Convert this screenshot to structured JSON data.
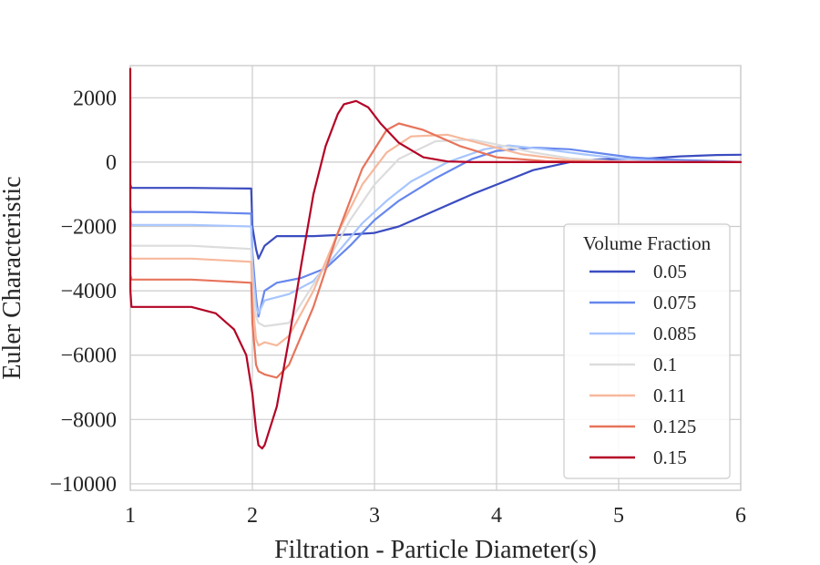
{
  "chart_data": {
    "type": "line",
    "title": "",
    "xlabel": "Filtration - Particle Diameter(s)",
    "ylabel": "Euler Characteristic",
    "xlim": [
      1,
      6
    ],
    "ylim": [
      -10200,
      3000
    ],
    "xticks": [
      1,
      2,
      3,
      4,
      5,
      6
    ],
    "xtick_labels": [
      "1",
      "2",
      "3",
      "4",
      "5",
      "6"
    ],
    "yticks": [
      2000,
      0,
      -2000,
      -4000,
      -6000,
      -8000,
      -10000
    ],
    "ytick_labels": [
      "2000",
      "0",
      "−2000",
      "−4000",
      "−6000",
      "−8000",
      "−10000"
    ],
    "grid": true,
    "legend_title": "Volume Fraction",
    "legend_position": "lower-right",
    "series": [
      {
        "name": "0.05",
        "color": "#3b4cc0",
        "x": [
          1.0,
          1.01,
          1.5,
          1.99,
          2.0,
          2.03,
          2.05,
          2.1,
          2.2,
          2.5,
          2.8,
          3.0,
          3.2,
          3.5,
          3.8,
          4.0,
          4.3,
          4.6,
          4.8,
          5.0,
          5.2,
          5.5,
          5.8,
          6.0
        ],
        "y": [
          -700,
          -800,
          -800,
          -820,
          -2000,
          -2700,
          -3000,
          -2600,
          -2300,
          -2300,
          -2250,
          -2200,
          -2000,
          -1500,
          -1000,
          -700,
          -250,
          0,
          80,
          100,
          100,
          180,
          220,
          230
        ]
      },
      {
        "name": "0.075",
        "color": "#6687ed",
        "x": [
          1.0,
          1.01,
          1.5,
          1.99,
          2.0,
          2.03,
          2.05,
          2.1,
          2.2,
          2.4,
          2.6,
          2.8,
          3.0,
          3.2,
          3.5,
          3.8,
          4.0,
          4.3,
          4.6,
          4.9,
          5.1,
          5.4,
          5.8,
          6.0
        ],
        "y": [
          -1400,
          -1550,
          -1550,
          -1600,
          -2800,
          -4200,
          -4800,
          -4000,
          -3750,
          -3600,
          -3300,
          -2600,
          -1800,
          -1200,
          -500,
          100,
          350,
          450,
          400,
          250,
          150,
          80,
          30,
          10
        ]
      },
      {
        "name": "0.085",
        "color": "#a7c5fe",
        "x": [
          1.0,
          1.01,
          1.5,
          1.99,
          2.0,
          2.03,
          2.05,
          2.1,
          2.3,
          2.5,
          2.7,
          2.9,
          3.1,
          3.3,
          3.6,
          3.9,
          4.1,
          4.4,
          4.7,
          5.0,
          5.3,
          5.6,
          6.0
        ],
        "y": [
          -1800,
          -1950,
          -1950,
          -2000,
          -3200,
          -4500,
          -4700,
          -4300,
          -4100,
          -3700,
          -2800,
          -1900,
          -1200,
          -600,
          0,
          400,
          520,
          400,
          250,
          120,
          40,
          10,
          0
        ]
      },
      {
        "name": "0.1",
        "color": "#dddcdc",
        "x": [
          1.0,
          1.01,
          1.5,
          1.99,
          2.0,
          2.03,
          2.05,
          2.1,
          2.3,
          2.4,
          2.6,
          2.8,
          3.0,
          3.2,
          3.5,
          3.8,
          4.0,
          4.3,
          4.6,
          5.0,
          5.4,
          6.0
        ],
        "y": [
          -2500,
          -2600,
          -2600,
          -2700,
          -3800,
          -4800,
          -5000,
          -5100,
          -5000,
          -4400,
          -3200,
          -1800,
          -700,
          100,
          650,
          700,
          550,
          300,
          120,
          20,
          0,
          0
        ]
      },
      {
        "name": "0.11",
        "color": "#f7b89c",
        "x": [
          1.0,
          1.01,
          1.5,
          1.99,
          2.0,
          2.03,
          2.05,
          2.1,
          2.2,
          2.3,
          2.5,
          2.7,
          2.9,
          3.1,
          3.3,
          3.6,
          3.9,
          4.2,
          4.6,
          5.0,
          5.5,
          6.0
        ],
        "y": [
          -2900,
          -3000,
          -3000,
          -3100,
          -4300,
          -5500,
          -5700,
          -5600,
          -5700,
          -5400,
          -4000,
          -2200,
          -700,
          300,
          800,
          850,
          550,
          250,
          60,
          10,
          0,
          0
        ]
      },
      {
        "name": "0.125",
        "color": "#e7745b",
        "x": [
          1.0,
          1.01,
          1.5,
          1.99,
          2.0,
          2.03,
          2.05,
          2.1,
          2.2,
          2.3,
          2.5,
          2.7,
          2.9,
          3.1,
          3.2,
          3.4,
          3.7,
          4.0,
          4.4,
          4.8,
          5.3,
          6.0
        ],
        "y": [
          -3500,
          -3650,
          -3650,
          -3750,
          -5000,
          -6300,
          -6500,
          -6600,
          -6700,
          -6300,
          -4500,
          -2200,
          -200,
          1000,
          1200,
          1000,
          500,
          150,
          30,
          5,
          0,
          0
        ]
      },
      {
        "name": "0.15",
        "color": "#b40426",
        "x": [
          1.0,
          1.001,
          1.01,
          1.5,
          1.7,
          1.85,
          1.95,
          2.0,
          2.03,
          2.05,
          2.08,
          2.1,
          2.2,
          2.3,
          2.4,
          2.5,
          2.6,
          2.7,
          2.75,
          2.85,
          2.95,
          3.05,
          3.2,
          3.4,
          3.6,
          3.8,
          4.0,
          4.5,
          5.0,
          6.0
        ],
        "y": [
          2900,
          -4000,
          -4500,
          -4500,
          -4700,
          -5200,
          -6000,
          -7200,
          -8300,
          -8800,
          -8900,
          -8800,
          -7600,
          -5500,
          -3200,
          -1000,
          500,
          1500,
          1800,
          1900,
          1700,
          1200,
          600,
          150,
          20,
          0,
          0,
          0,
          0,
          0
        ]
      }
    ]
  }
}
